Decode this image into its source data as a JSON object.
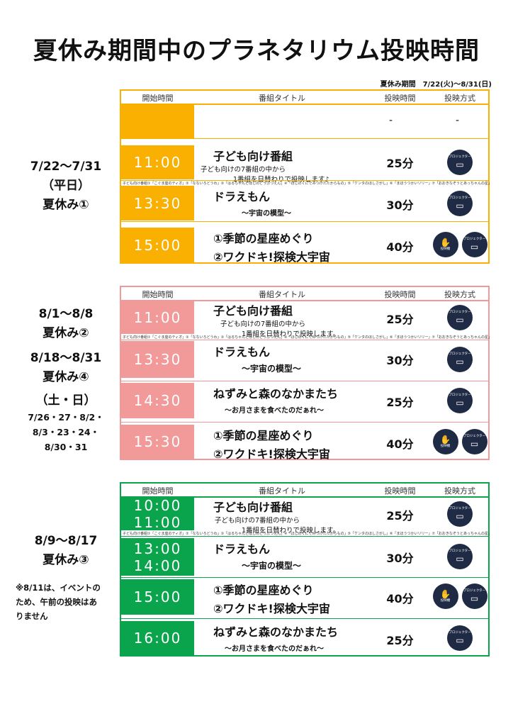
{
  "title": "夏休み期間中のプラネタリウム投映時間",
  "period": "夏休み期間　7/22(火)〜8/31(日)",
  "headers": {
    "start": "開始時間",
    "program": "番組タイトル",
    "duration": "投映時間",
    "method": "投映方式"
  },
  "program_note": "子ども向け番組①「こぐま座のティオ」②「なないろどうわ」③「はるちゃんとほしのどうぶつえん」④「ほしのくにでみつけたたからもの」⑤「ケンタのほしさがし」⑥「まほうつかいリリー」⑦「おおきなぞうとあっちゃんの星」",
  "icon_labels": {
    "projector": "プロジェクター",
    "hand": "投映機"
  },
  "colors": {
    "orange": "#f9b000",
    "pink": "#f29a9a",
    "green": "#0aa44d"
  },
  "block1": {
    "dates": "7/22〜7/31",
    "day": "（平日）",
    "label": "夏休み①",
    "empty_dash1": "-",
    "empty_dash2": "-",
    "rows": [
      {
        "time": "11:00",
        "title": "子ども向け番組",
        "sub": "子ども向けの7番組の中から",
        "sub2": "1番組を日替わりで投映します♪",
        "duration": "25分"
      },
      {
        "time": "13:30",
        "title": "ドラえもん",
        "desc": "〜宇宙の模型〜",
        "duration": "30分"
      },
      {
        "time": "15:00",
        "title": "①季節の星座めぐり",
        "title2": "②ワクドキ!探検大宇宙",
        "duration": "40分"
      }
    ]
  },
  "block2": {
    "dates1": "8/1〜8/8",
    "label1": "夏休み②",
    "dates2": "8/18〜8/31",
    "label2": "夏休み④",
    "weekend": "（土・日）",
    "weekend_dates1": "7/26・27・8/2・",
    "weekend_dates2": "8/3・23・24・",
    "weekend_dates3": "8/30・31",
    "rows": [
      {
        "time": "11:00",
        "title": "子ども向け番組",
        "sub": "子ども向けの7番組の中から",
        "sub2": "1番組を日替わりで投映します。",
        "duration": "25分"
      },
      {
        "time": "13:30",
        "title": "ドラえもん",
        "desc": "〜宇宙の模型〜",
        "duration": "30分"
      },
      {
        "time": "14:30",
        "title": "ねずみと森のなかまたち",
        "desc": "〜お月さまを食べたのだぁれ〜",
        "duration": "25分"
      },
      {
        "time": "15:30",
        "title": "①季節の星座めぐり",
        "title2": "②ワクドキ!探検大宇宙",
        "duration": "40分"
      }
    ]
  },
  "block3": {
    "dates": "8/9〜8/17",
    "label": "夏休み③",
    "note1": "※8/11は、イベントの",
    "note2": "ため、午前の投映はあ",
    "note3": "りません",
    "rows": [
      {
        "time": "10:00",
        "time2": "11:00",
        "title": "子ども向け番組",
        "sub": "子ども向けの7番組の中から",
        "sub2": "1番組を日替わりで投映します。",
        "duration": "25分"
      },
      {
        "time": "13:00",
        "time2": "14:00",
        "title": "ドラえもん",
        "desc": "〜宇宙の模型〜",
        "duration": "30分"
      },
      {
        "time": "15:00",
        "title": "①季節の星座めぐり",
        "title2": "②ワクドキ!探検大宇宙",
        "duration": "40分"
      },
      {
        "time": "16:00",
        "title": "ねずみと森のなかまたち",
        "desc": "〜お月さまを食べたのだぁれ〜",
        "duration": "25分"
      }
    ]
  }
}
